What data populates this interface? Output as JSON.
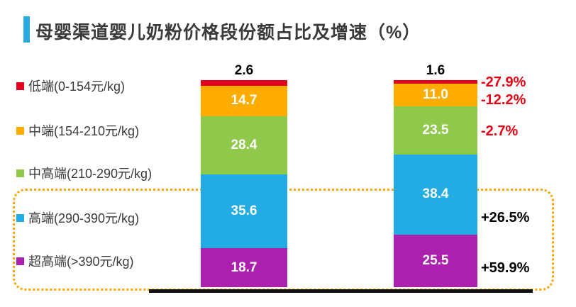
{
  "title": {
    "text": "母婴渠道婴儿奶粉价格段份额占比及增速（%）",
    "accent_color": "#29ABE2"
  },
  "colors": {
    "axis": "#111111",
    "dotted_box": "#FFA400",
    "growth_negative": "#E60012",
    "growth_positive": "#000000"
  },
  "chart_data": {
    "type": "bar",
    "subtype": "stacked-percentage",
    "unit": "%",
    "title": "母婴渠道婴儿奶粉价格段份额占比及增速（%）",
    "ylim": [
      0,
      100
    ],
    "grid": false,
    "legend_position": "left",
    "bars": 2,
    "segments": [
      {
        "name": "低端(0-154元/kg)",
        "color": "#E2001F",
        "values": [
          2.6,
          1.6
        ],
        "labels": [
          "2.6",
          "1.6"
        ],
        "label_position": "above-bar",
        "growth": "-27.9%",
        "growth_color": "#E60012"
      },
      {
        "name": "中端(154-210元/kg)",
        "color": "#FFAC00",
        "values": [
          14.7,
          11.0
        ],
        "labels": [
          "14.7",
          "11.0"
        ],
        "label_position": "inside",
        "growth": "-12.2%",
        "growth_color": "#E60012"
      },
      {
        "name": "中高端(210-290元/kg)",
        "color": "#8FC84A",
        "values": [
          28.4,
          23.5
        ],
        "labels": [
          "28.4",
          "23.5"
        ],
        "label_position": "inside",
        "growth": "-2.7%",
        "growth_color": "#E60012"
      },
      {
        "name": "高端(290-390元/kg)",
        "color": "#22ACE3",
        "values": [
          35.6,
          38.4
        ],
        "labels": [
          "35.6",
          "38.4"
        ],
        "label_position": "inside",
        "growth": "+26.5%",
        "growth_color": "#000000"
      },
      {
        "name": "超高端(>390元/kg)",
        "color": "#AC20AE",
        "values": [
          18.7,
          25.5
        ],
        "labels": [
          "18.7",
          "25.5"
        ],
        "label_position": "inside",
        "growth": "+59.9%",
        "growth_color": "#000000"
      }
    ],
    "highlight_box_segments": [
      "高端(290-390元/kg)",
      "超高端(>390元/kg)"
    ]
  }
}
